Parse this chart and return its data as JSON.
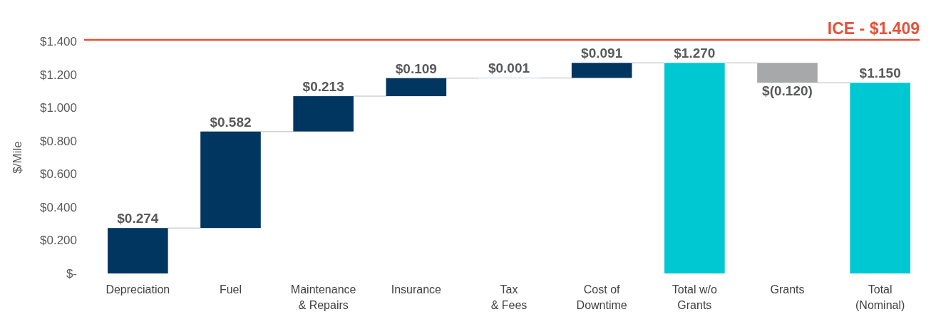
{
  "chart_data": {
    "type": "bar",
    "ylabel": "$/Mile",
    "categories": [
      "Depreciation",
      "Fuel",
      "Maintenance\n& Repairs",
      "Insurance",
      "Tax\n& Fees",
      "Cost of\nDowntime",
      "Total w/o\nGrants",
      "Grants",
      "Total\n(Nominal)"
    ],
    "values": [
      0.274,
      0.582,
      0.213,
      0.109,
      0.001,
      0.091,
      1.27,
      -0.12,
      1.15
    ],
    "base": [
      0,
      0.274,
      0.856,
      1.069,
      1.178,
      1.179,
      0,
      1.27,
      0
    ],
    "colors": [
      "#003660",
      "#003660",
      "#003660",
      "#003660",
      "#003660",
      "#003660",
      "#00c8d2",
      "#a6a8a9",
      "#00c8d2"
    ],
    "value_labels": [
      "$0.274",
      "$0.582",
      "$0.213",
      "$0.109",
      "$0.001",
      "$0.091",
      "$1.270",
      "$(0.120)",
      "$1.150"
    ],
    "ylim": [
      0,
      1.4
    ],
    "yticks": [
      {
        "value": 0,
        "label": "$-"
      },
      {
        "value": 0.2,
        "label": "$0.200"
      },
      {
        "value": 0.4,
        "label": "$0.400"
      },
      {
        "value": 0.6,
        "label": "$0.600"
      },
      {
        "value": 0.8,
        "label": "$0.800"
      },
      {
        "value": 1.0,
        "label": "$1.000"
      },
      {
        "value": 1.2,
        "label": "$1.200"
      },
      {
        "value": 1.4,
        "label": "$1.400"
      }
    ],
    "ref_lines": [
      {
        "axis": "y",
        "value": 1.409,
        "label": "ICE - $1.409",
        "color": "#e8503a"
      }
    ],
    "grid": false
  }
}
